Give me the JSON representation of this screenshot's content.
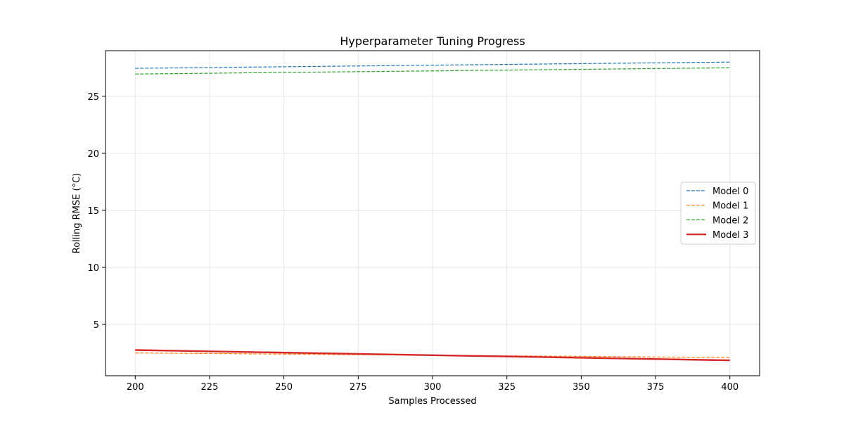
{
  "chart_data": {
    "type": "line",
    "title": "Hyperparameter Tuning Progress",
    "xlabel": "Samples Processed",
    "ylabel": "Rolling RMSE (°C)",
    "xlim": [
      190,
      410
    ],
    "ylim": [
      0.5,
      29.0
    ],
    "xticks": [
      200,
      225,
      250,
      275,
      300,
      325,
      350,
      375,
      400
    ],
    "yticks": [
      5,
      10,
      15,
      20,
      25
    ],
    "grid": true,
    "legend_position": "center-right",
    "series": [
      {
        "name": "Model 0",
        "color": "#1f77b4",
        "style": "dashed",
        "x": [
          200,
          400
        ],
        "y": [
          27.45,
          28.0
        ]
      },
      {
        "name": "Model 1",
        "color": "#ff7f0e",
        "style": "dashed",
        "x": [
          200,
          400
        ],
        "y": [
          2.5,
          2.1
        ]
      },
      {
        "name": "Model 2",
        "color": "#2ca02c",
        "style": "dashed",
        "x": [
          200,
          400
        ],
        "y": [
          26.95,
          27.5
        ]
      },
      {
        "name": "Model 3",
        "color": "#d62728",
        "style": "solid",
        "x": [
          200,
          400
        ],
        "y": [
          2.75,
          1.85
        ]
      }
    ]
  }
}
